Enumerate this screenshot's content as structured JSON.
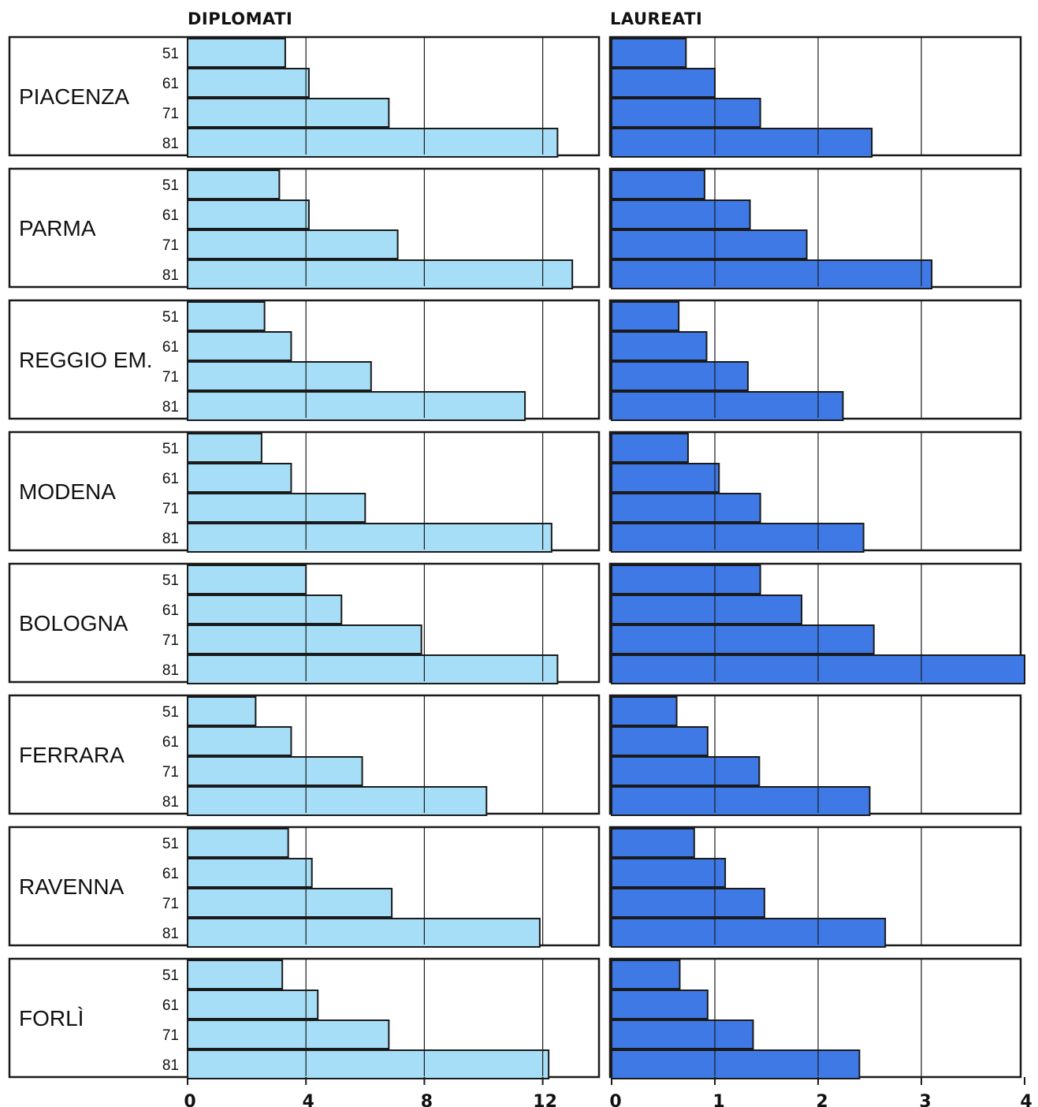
{
  "chart_data": [
    {
      "type": "bar",
      "orientation": "horizontal",
      "title": "DIPLOMATI",
      "xlim": [
        0,
        13.5
      ],
      "ticks": [
        0,
        4,
        8,
        12
      ],
      "tick_labels": [
        "0",
        "4",
        "8",
        "12"
      ],
      "grid": true,
      "color": "#a5def6",
      "years": [
        "51",
        "61",
        "71",
        "81"
      ],
      "provinces": [
        {
          "name": "PIACENZA",
          "values": [
            3.3,
            4.1,
            6.8,
            12.5
          ]
        },
        {
          "name": "PARMA",
          "values": [
            3.1,
            4.1,
            7.1,
            13.0
          ]
        },
        {
          "name": "REGGIO EM.",
          "values": [
            2.6,
            3.5,
            6.2,
            11.4
          ]
        },
        {
          "name": "MODENA",
          "values": [
            2.5,
            3.5,
            6.0,
            12.3
          ]
        },
        {
          "name": "BOLOGNA",
          "values": [
            4.0,
            5.2,
            7.9,
            12.5
          ]
        },
        {
          "name": "FERRARA",
          "values": [
            2.3,
            3.5,
            5.9,
            10.1
          ]
        },
        {
          "name": "RAVENNA",
          "values": [
            3.4,
            4.2,
            6.9,
            11.9
          ]
        },
        {
          "name": "FORLÌ",
          "values": [
            3.2,
            4.4,
            6.8,
            12.2
          ]
        }
      ]
    },
    {
      "type": "bar",
      "orientation": "horizontal",
      "title": "LAUREATI",
      "xlim": [
        0,
        4
      ],
      "ticks": [
        0,
        1,
        2,
        3,
        4
      ],
      "tick_labels": [
        "0",
        "1",
        "2",
        "3",
        "4"
      ],
      "grid": true,
      "color": "#3f79e6",
      "years": [
        "51",
        "61",
        "71",
        "81"
      ],
      "provinces": [
        {
          "name": "PIACENZA",
          "values": [
            0.72,
            1.0,
            1.44,
            2.52
          ]
        },
        {
          "name": "PARMA",
          "values": [
            0.9,
            1.34,
            1.89,
            3.1
          ]
        },
        {
          "name": "REGGIO EM.",
          "values": [
            0.65,
            0.92,
            1.32,
            2.24
          ]
        },
        {
          "name": "MODENA",
          "values": [
            0.74,
            1.04,
            1.44,
            2.44
          ]
        },
        {
          "name": "BOLOGNA",
          "values": [
            1.44,
            1.84,
            2.54,
            4.0
          ]
        },
        {
          "name": "FERRARA",
          "values": [
            0.63,
            0.93,
            1.43,
            2.5
          ]
        },
        {
          "name": "RAVENNA",
          "values": [
            0.8,
            1.1,
            1.48,
            2.65
          ]
        },
        {
          "name": "FORLÌ",
          "values": [
            0.66,
            0.93,
            1.37,
            2.4
          ]
        }
      ]
    }
  ]
}
